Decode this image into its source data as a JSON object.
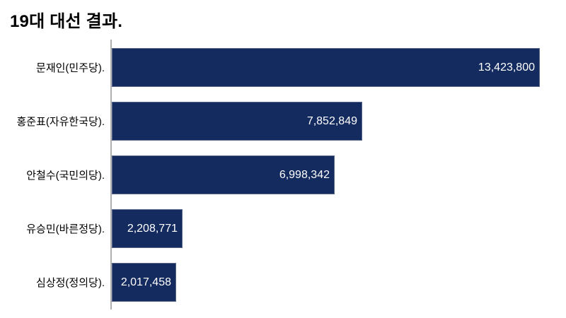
{
  "title": "19대 대선 결과.",
  "colors": {
    "background": "#ffffff",
    "bar": "#142b60",
    "axis": "#b0b0b0",
    "label_text": "#000000",
    "value_text": "#ffffff"
  },
  "chart_data": {
    "type": "bar",
    "orientation": "horizontal",
    "title": "19대 대선 결과.",
    "categories": [
      "문재인(민주당).",
      "홍준표(자유한국당).",
      "안철수(국민의당).",
      "유승민(바른정당).",
      "심상정(정의당)."
    ],
    "values": [
      13423800,
      7852849,
      6998342,
      2208771,
      2017458
    ],
    "value_labels": [
      "13,423,800",
      "7,852,849",
      "6,998,342",
      "2,208,771",
      "2,017,458"
    ],
    "xlim": [
      0,
      13423800
    ],
    "xlabel": "",
    "ylabel": "",
    "grid": false,
    "legend": false,
    "value_label_position": "inside-end"
  }
}
